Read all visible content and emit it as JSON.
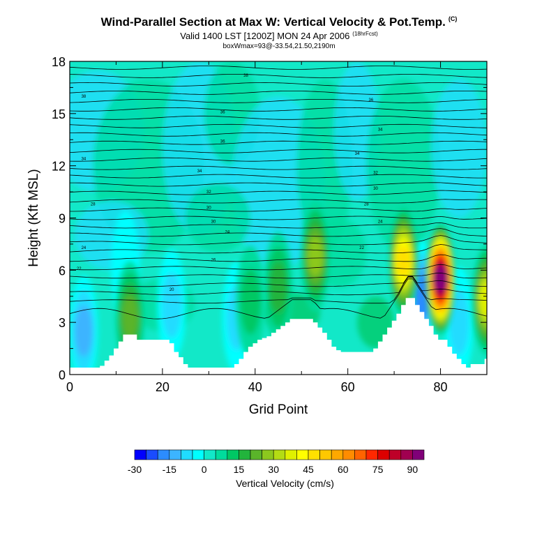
{
  "header": {
    "title": "Wind-Parallel Section at Max W: Vertical Velocity & Pot.Temp.",
    "title_mark": "(C)",
    "valid": "Valid 1400 LST [1200Z] MON 24 Apr 2006",
    "forecast": "(18hrFcst)",
    "box_info": "boxWmax=93@-33.54,21.50,2190m"
  },
  "chart_data": {
    "type": "heatmap",
    "title": "Wind-Parallel Section at Max W: Vertical Velocity & Pot.Temp.",
    "xlabel": "Grid Point",
    "ylabel": "Height (Kft MSL)",
    "xlim": [
      0,
      90
    ],
    "ylim": [
      0,
      18
    ],
    "xticks": [
      0,
      20,
      40,
      60,
      80
    ],
    "yticks": [
      0,
      3,
      6,
      9,
      12,
      15,
      18
    ],
    "terrain_kft": [
      0.4,
      0.4,
      0.4,
      0.4,
      0.4,
      0.4,
      0.4,
      0.5,
      0.8,
      1.1,
      1.5,
      1.9,
      2.3,
      2.3,
      2.3,
      2.0,
      2.0,
      2.0,
      2.0,
      2.0,
      2.0,
      2.0,
      1.8,
      1.3,
      1.0,
      0.6,
      0.4,
      0.4,
      0.4,
      0.4,
      0.4,
      0.4,
      0.4,
      0.4,
      0.4,
      0.4,
      0.6,
      0.9,
      1.3,
      1.6,
      1.8,
      2.0,
      2.1,
      2.2,
      2.4,
      2.6,
      2.8,
      3.0,
      3.2,
      3.2,
      3.2,
      3.2,
      3.2,
      3.0,
      2.7,
      2.4,
      2.0,
      1.6,
      1.4,
      1.3,
      1.3,
      1.3,
      1.3,
      1.3,
      1.3,
      1.3,
      1.5,
      1.9,
      2.3,
      2.7,
      3.1,
      3.5,
      4.0,
      4.4,
      4.4,
      4.0,
      3.6,
      3.2,
      2.8,
      2.3,
      2.0,
      2.0,
      1.6,
      1.2,
      0.9,
      0.6,
      0.4,
      0.6,
      0.6,
      0.6,
      0.9
    ],
    "theta_contour_labels": [
      "20",
      "22",
      "24",
      "26",
      "28",
      "30",
      "32",
      "34",
      "36",
      "38"
    ],
    "colorbar": {
      "label": "Vertical Velocity (cm/s)",
      "tick_labels": [
        "-30",
        "-15",
        "0",
        "15",
        "30",
        "45",
        "60",
        "75",
        "90"
      ],
      "bins_cm_s": [
        -30,
        -25,
        -20,
        -15,
        -10,
        -5,
        0,
        5,
        10,
        15,
        20,
        25,
        30,
        35,
        40,
        45,
        50,
        55,
        60,
        65,
        70,
        75,
        80,
        85,
        90,
        95
      ],
      "colors": [
        "#0000ff",
        "#1a4cff",
        "#2c8cff",
        "#3cb4ff",
        "#20dcff",
        "#00ffff",
        "#12e8c8",
        "#00dc9c",
        "#00c864",
        "#22b43c",
        "#5ab42a",
        "#8cc81e",
        "#b4dc14",
        "#e0f000",
        "#ffff00",
        "#ffe000",
        "#ffc800",
        "#ffa800",
        "#ff8c00",
        "#ff6400",
        "#ff2800",
        "#dc0000",
        "#be0028",
        "#a00050",
        "#800078"
      ]
    },
    "updraft_cores": [
      {
        "x": 80,
        "z_kft": 5.5,
        "w_cm_s": 93
      },
      {
        "x": 72,
        "z_kft": 6.5,
        "w_cm_s": 45
      },
      {
        "x": 53,
        "z_kft": 6.8,
        "w_cm_s": 28
      },
      {
        "x": 90,
        "z_kft": 4.3,
        "w_cm_s": 35
      },
      {
        "x": 45,
        "z_kft": 5.0,
        "w_cm_s": 18
      },
      {
        "x": 13,
        "z_kft": 3.3,
        "w_cm_s": 20
      },
      {
        "x": 39,
        "z_kft": 4.2,
        "w_cm_s": 14
      }
    ],
    "downdraft_cores": [
      {
        "x": 3,
        "z_kft": 2.5,
        "w_cm_s": -15
      },
      {
        "x": 22,
        "z_kft": 4.0,
        "w_cm_s": -12
      },
      {
        "x": 36,
        "z_kft": 3.3,
        "w_cm_s": -10
      },
      {
        "x": 76,
        "z_kft": 4.5,
        "w_cm_s": -20
      },
      {
        "x": 84,
        "z_kft": 3.0,
        "w_cm_s": -12
      },
      {
        "x": 12,
        "z_kft": 6.2,
        "w_cm_s": -8
      }
    ]
  }
}
